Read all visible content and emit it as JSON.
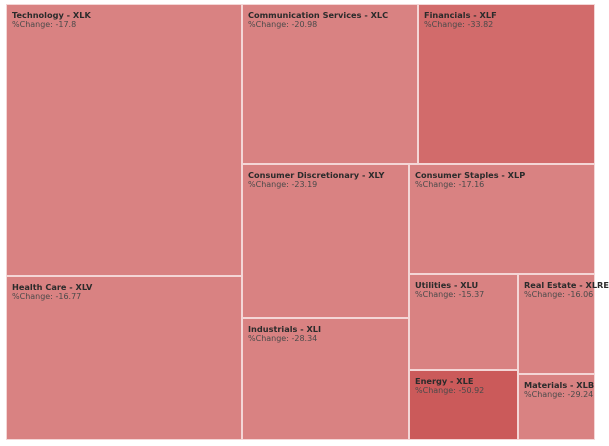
{
  "chart_data": {
    "type": "treemap",
    "value_label": "%Change: ",
    "colors": {
      "light": "#d98282",
      "medium": "#d26b6b",
      "dark": "#cb5a5a"
    },
    "sectors": [
      {
        "name": "Technology - XLK",
        "change": "-17.8"
      },
      {
        "name": "Health Care - XLV",
        "change": "-16.77"
      },
      {
        "name": "Communication Services - XLC",
        "change": "-20.98"
      },
      {
        "name": "Financials - XLF",
        "change": "-33.82"
      },
      {
        "name": "Consumer Discretionary - XLY",
        "change": "-23.19"
      },
      {
        "name": "Consumer Staples - XLP",
        "change": "-17.16"
      },
      {
        "name": "Industrials - XLI",
        "change": "-28.34"
      },
      {
        "name": "Utilities - XLU",
        "change": "-15.37"
      },
      {
        "name": "Real Estate - XLRE",
        "change": "-16.06"
      },
      {
        "name": "Energy - XLE",
        "change": "-50.92"
      },
      {
        "name": "Materials - XLB",
        "change": "-29.24"
      }
    ]
  }
}
